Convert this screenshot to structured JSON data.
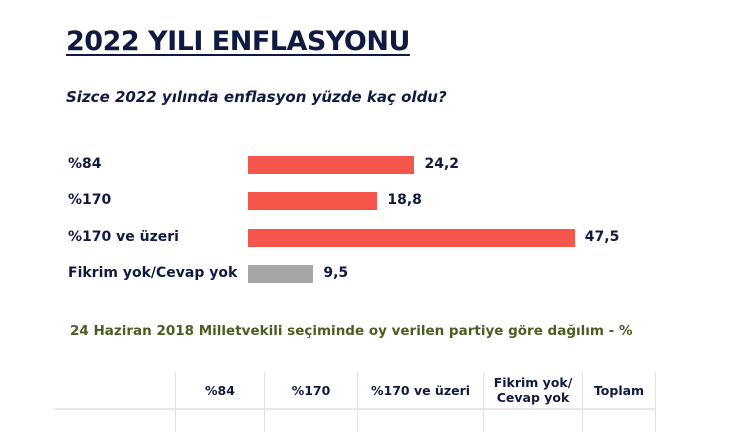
{
  "title": "2022 YILI ENFLASYONU",
  "question": "Sizce 2022 yılında enflasyon yüzde kaç oldu?",
  "chart_data": {
    "type": "bar",
    "orientation": "horizontal",
    "categories": [
      "%84",
      "%170",
      "%170 ve üzeri",
      "Fikrim yok/Cevap yok"
    ],
    "values": [
      24.2,
      18.8,
      47.5,
      9.5
    ],
    "value_labels": [
      "24,2",
      "18,8",
      "47,5",
      "9,5"
    ],
    "colors": [
      "#f4564b",
      "#f4564b",
      "#f4564b",
      "#a6a6a6"
    ],
    "xlim": [
      0,
      50
    ],
    "grid": false
  },
  "subtitle": "24 Haziran 2018 Milletvekili seçiminde oy verilen partiye göre dağılım -  %",
  "table": {
    "headers": [
      "",
      "%84",
      "%170",
      "%170 ve üzeri",
      "Fikrim yok/ Cevap yok",
      "Toplam"
    ]
  }
}
